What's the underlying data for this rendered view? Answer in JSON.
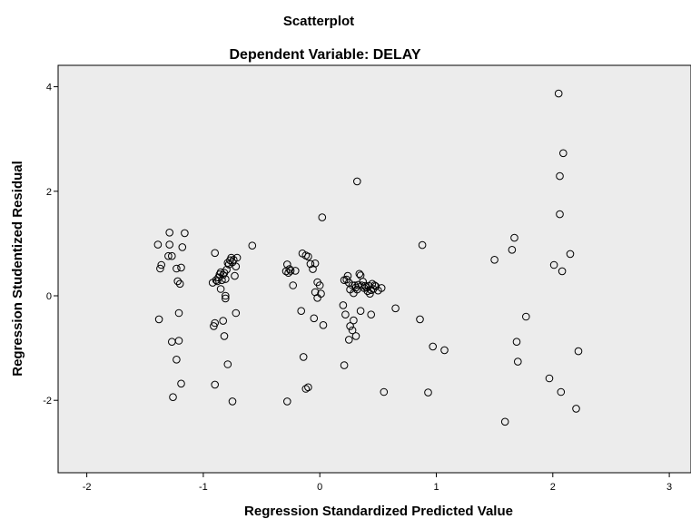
{
  "chart_data": {
    "type": "scatter",
    "title": "Scatterplot",
    "subtitle": "Dependent Variable: DELAY",
    "xlabel": "Regression Standardized Predicted Value",
    "ylabel": "Regression Studentized Residual",
    "xlim": [
      -2.3,
      3.2
    ],
    "ylim": [
      -3.4,
      4.3
    ],
    "xticks": [
      -2,
      -1,
      0,
      1,
      2,
      3
    ],
    "yticks": [
      -2,
      0,
      2,
      4
    ],
    "xtick_labels": [
      "-2",
      "-1",
      "0",
      "1",
      "2",
      "3"
    ],
    "ytick_labels": [
      "-2",
      "0",
      "2",
      "4"
    ],
    "grid": false,
    "legend": "none",
    "plot_background": "#ececec",
    "marker": "open-circle",
    "marker_color": "#000000",
    "series": [
      {
        "x": [
          -1.39,
          -1.37,
          -1.36,
          -1.3,
          -1.29,
          -1.29,
          -1.27,
          -1.23,
          -1.22,
          -1.2,
          -1.19,
          -1.18,
          -1.16,
          -1.38,
          -1.21,
          -1.27,
          -1.23,
          -1.21,
          -1.26,
          -1.19,
          -0.92,
          -0.9,
          -0.89,
          -0.88,
          -0.87,
          -0.86,
          -0.85,
          -0.84,
          -0.83,
          -0.82,
          -0.81,
          -0.8,
          -0.79,
          -0.78,
          -0.77,
          -0.76,
          -0.75,
          -0.74,
          -0.73,
          -0.72,
          -0.71,
          -0.58,
          -0.85,
          -0.81,
          -0.81,
          -0.9,
          -0.91,
          -0.83,
          -0.72,
          -0.82,
          -0.79,
          -0.9,
          -0.75,
          -0.29,
          -0.28,
          -0.27,
          -0.26,
          -0.25,
          -0.23,
          -0.21,
          -0.15,
          -0.12,
          -0.1,
          -0.08,
          -0.06,
          -0.04,
          -0.02,
          0.0,
          0.01,
          0.02,
          -0.02,
          -0.16,
          0.03,
          -0.05,
          -0.14,
          -0.12,
          -0.1,
          -0.28,
          -0.04,
          0.2,
          0.21,
          0.23,
          0.24,
          0.25,
          0.26,
          0.28,
          0.29,
          0.3,
          0.31,
          0.32,
          0.33,
          0.34,
          0.35,
          0.36,
          0.37,
          0.38,
          0.39,
          0.4,
          0.41,
          0.42,
          0.43,
          0.44,
          0.45,
          0.46,
          0.47,
          0.48,
          0.5,
          0.53,
          0.22,
          0.26,
          0.29,
          0.31,
          0.35,
          0.44,
          0.65,
          0.32,
          0.28,
          0.25,
          0.21,
          0.55,
          0.86,
          0.88,
          0.93,
          0.97,
          1.07,
          1.5,
          1.59,
          1.65,
          1.67,
          1.69,
          1.7,
          1.77,
          1.97,
          2.01,
          2.05,
          2.06,
          2.06,
          2.07,
          2.08,
          2.09,
          2.15,
          2.2,
          2.22
        ],
        "y": [
          0.98,
          0.52,
          0.59,
          0.76,
          0.98,
          1.21,
          0.76,
          0.52,
          0.28,
          0.23,
          0.54,
          0.93,
          1.2,
          -0.45,
          -0.33,
          -0.88,
          -1.22,
          -0.86,
          -1.94,
          -1.68,
          0.25,
          0.82,
          0.3,
          0.28,
          0.35,
          0.41,
          0.45,
          0.3,
          0.4,
          0.44,
          0.32,
          0.5,
          0.63,
          0.6,
          0.68,
          0.73,
          0.64,
          0.69,
          0.38,
          0.56,
          0.73,
          0.96,
          0.13,
          0.0,
          -0.05,
          -0.52,
          -0.58,
          -0.48,
          -0.33,
          -0.77,
          -1.31,
          -1.7,
          -2.02,
          0.47,
          0.6,
          0.44,
          0.51,
          0.48,
          0.2,
          0.48,
          0.81,
          0.77,
          0.75,
          0.61,
          0.51,
          0.62,
          0.26,
          0.2,
          0.04,
          1.5,
          -0.04,
          -0.29,
          -0.56,
          -0.43,
          -1.17,
          -1.78,
          -1.75,
          -2.02,
          0.07,
          -0.18,
          0.3,
          0.31,
          0.38,
          0.25,
          0.12,
          0.2,
          0.05,
          0.2,
          0.16,
          0.12,
          0.21,
          0.42,
          0.39,
          0.2,
          0.27,
          0.15,
          0.19,
          0.16,
          0.09,
          0.19,
          0.04,
          0.11,
          0.23,
          0.13,
          0.2,
          0.18,
          0.1,
          0.15,
          -0.36,
          -0.58,
          -0.47,
          -0.77,
          -0.29,
          -0.36,
          -0.24,
          2.19,
          -0.66,
          -0.84,
          -1.33,
          -1.84,
          -0.45,
          0.97,
          -1.85,
          -0.97,
          -1.04,
          0.69,
          -2.41,
          0.88,
          1.11,
          -0.88,
          -1.26,
          -0.4,
          -1.58,
          0.59,
          3.87,
          1.56,
          2.29,
          -1.84,
          0.47,
          2.73,
          0.8,
          -2.16,
          -1.06
        ]
      }
    ]
  }
}
